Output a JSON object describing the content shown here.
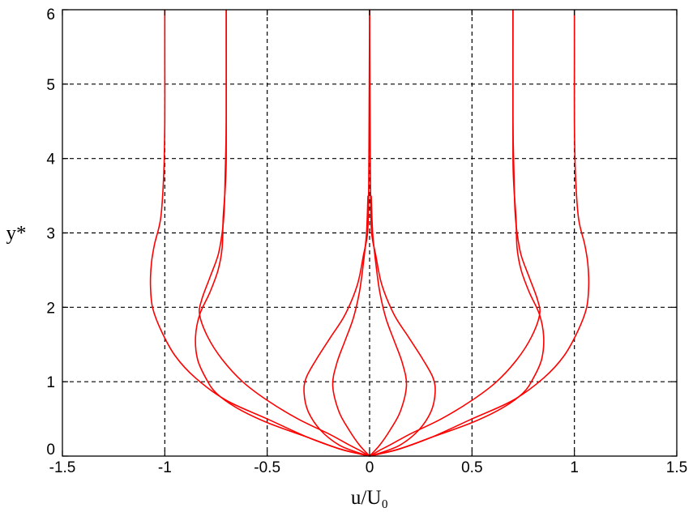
{
  "chart_data": {
    "type": "line",
    "xlabel": "u/U₀",
    "ylabel": "y*",
    "xlim": [
      -1.5,
      1.5
    ],
    "ylim": [
      0,
      6
    ],
    "x_ticks": [
      "-1.5",
      "-1",
      "-0.5",
      "0",
      "0.5",
      "1",
      "1.5"
    ],
    "y_ticks": [
      "0",
      "1",
      "2",
      "3",
      "4",
      "5",
      "6"
    ],
    "grid": true,
    "line_color": "#ff0000",
    "series": [
      {
        "x": [
          0,
          0.05,
          0.15,
          0.3,
          0.5,
          0.7,
          0.85,
          0.95,
          1.02,
          1.06,
          1.07,
          1.065,
          1.05,
          1.02,
          1.005,
          1.0,
          1.0,
          1.0
        ],
        "y": [
          0,
          0.03,
          0.1,
          0.25,
          0.5,
          0.75,
          1.05,
          1.35,
          1.7,
          2.0,
          2.3,
          2.6,
          2.85,
          3.2,
          3.8,
          4.5,
          5.3,
          6.0
        ]
      },
      {
        "x": [
          0,
          -0.05,
          -0.15,
          -0.3,
          -0.5,
          -0.7,
          -0.85,
          -0.95,
          -1.02,
          -1.06,
          -1.07,
          -1.065,
          -1.05,
          -1.02,
          -1.005,
          -1.0,
          -1.0,
          -1.0
        ],
        "y": [
          0,
          0.03,
          0.1,
          0.25,
          0.5,
          0.75,
          1.05,
          1.35,
          1.7,
          2.0,
          2.3,
          2.6,
          2.85,
          3.2,
          3.8,
          4.5,
          5.3,
          6.0
        ]
      },
      {
        "x": [
          0,
          0.05,
          0.15,
          0.3,
          0.5,
          0.65,
          0.75,
          0.8,
          0.84,
          0.85,
          0.83,
          0.78,
          0.74,
          0.72,
          0.715,
          0.705,
          0.7,
          0.7,
          0.7
        ],
        "y": [
          0,
          0.03,
          0.1,
          0.25,
          0.45,
          0.65,
          0.85,
          1.05,
          1.3,
          1.6,
          1.9,
          2.2,
          2.5,
          2.8,
          3.2,
          3.6,
          4.0,
          5.0,
          6.0
        ]
      },
      {
        "x": [
          0,
          -0.05,
          -0.15,
          -0.3,
          -0.5,
          -0.65,
          -0.75,
          -0.8,
          -0.84,
          -0.85,
          -0.83,
          -0.78,
          -0.74,
          -0.72,
          -0.715,
          -0.705,
          -0.7,
          -0.7,
          -0.7
        ],
        "y": [
          0,
          0.03,
          0.1,
          0.25,
          0.45,
          0.65,
          0.85,
          1.05,
          1.3,
          1.6,
          1.9,
          2.2,
          2.5,
          2.8,
          3.2,
          3.6,
          4.0,
          5.0,
          6.0
        ]
      },
      {
        "x": [
          0,
          0.02,
          0.05,
          0.1,
          0.2,
          0.35,
          0.5,
          0.62,
          0.72,
          0.79,
          0.83,
          0.82,
          0.78,
          0.74,
          0.72,
          0.71,
          0.705,
          0.7,
          0.7
        ],
        "y": [
          0,
          0.03,
          0.08,
          0.15,
          0.3,
          0.5,
          0.75,
          1.0,
          1.3,
          1.6,
          1.9,
          2.1,
          2.4,
          2.7,
          3.0,
          3.3,
          3.8,
          4.5,
          6.0
        ]
      },
      {
        "x": [
          0,
          -0.02,
          -0.05,
          -0.1,
          -0.2,
          -0.35,
          -0.5,
          -0.62,
          -0.72,
          -0.79,
          -0.83,
          -0.82,
          -0.78,
          -0.74,
          -0.72,
          -0.71,
          -0.705,
          -0.7,
          -0.7
        ],
        "y": [
          0,
          0.03,
          0.08,
          0.15,
          0.3,
          0.5,
          0.75,
          1.0,
          1.3,
          1.6,
          1.9,
          2.1,
          2.4,
          2.7,
          3.0,
          3.3,
          3.8,
          4.5,
          6.0
        ]
      },
      {
        "x": [
          0,
          0.06,
          0.15,
          0.24,
          0.3,
          0.32,
          0.31,
          0.26,
          0.19,
          0.12,
          0.06,
          0.03,
          0.01,
          0.005,
          0.003,
          0.0
        ],
        "y": [
          0,
          0.05,
          0.15,
          0.35,
          0.6,
          0.85,
          1.05,
          1.3,
          1.6,
          1.9,
          2.3,
          2.7,
          3.0,
          3.5,
          4.2,
          6.0
        ]
      },
      {
        "x": [
          0,
          -0.06,
          -0.15,
          -0.24,
          -0.3,
          -0.32,
          -0.31,
          -0.26,
          -0.19,
          -0.12,
          -0.06,
          -0.03,
          -0.01,
          -0.005,
          -0.003,
          0.0
        ],
        "y": [
          0,
          0.05,
          0.15,
          0.35,
          0.6,
          0.85,
          1.05,
          1.3,
          1.6,
          1.9,
          2.3,
          2.7,
          3.0,
          3.5,
          4.2,
          6.0
        ]
      },
      {
        "x": [
          0,
          0.05,
          0.1,
          0.15,
          0.18,
          0.16,
          0.12,
          0.08,
          0.05,
          0.03,
          0.015,
          0.008
        ],
        "y": [
          0,
          0.15,
          0.35,
          0.6,
          0.95,
          1.25,
          1.55,
          1.85,
          2.2,
          2.6,
          3.0,
          3.5
        ]
      },
      {
        "x": [
          0,
          -0.05,
          -0.1,
          -0.15,
          -0.18,
          -0.16,
          -0.12,
          -0.08,
          -0.05,
          -0.03,
          -0.015,
          -0.008
        ],
        "y": [
          0,
          0.15,
          0.35,
          0.6,
          0.95,
          1.25,
          1.55,
          1.85,
          2.2,
          2.6,
          3.0,
          3.5
        ]
      }
    ]
  }
}
